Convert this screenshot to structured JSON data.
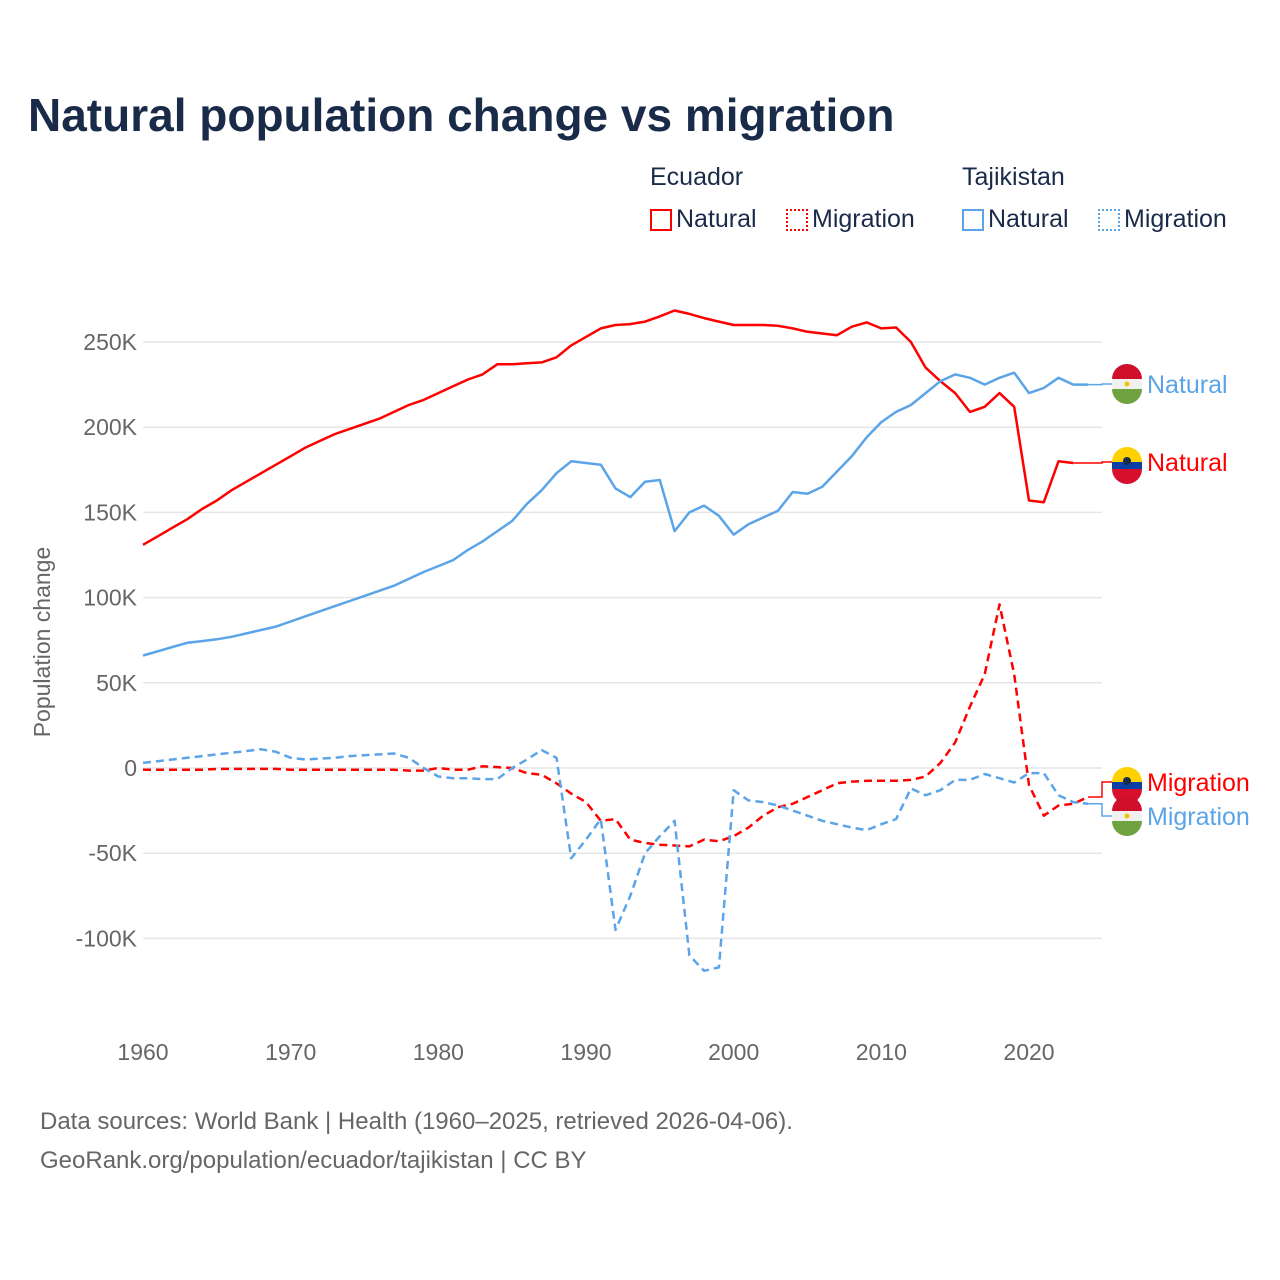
{
  "title": "Natural population change vs migration",
  "legend": {
    "groups": [
      {
        "country": "Ecuador",
        "items": [
          "Natural",
          "Migration"
        ],
        "color": "#ff0000"
      },
      {
        "country": "Tajikistan",
        "items": [
          "Natural",
          "Migration"
        ],
        "color": "#5ba4e8"
      }
    ]
  },
  "footer": {
    "line1": "Data sources: World Bank | Health (1960–2025, retrieved 2026-04-06).",
    "line2": "GeoRank.org/population/ecuador/tajikistan | CC BY"
  },
  "chart_data": {
    "type": "line",
    "title": "Natural population change vs migration",
    "xlabel": "",
    "ylabel": "Population change",
    "xlim": [
      1960,
      2025
    ],
    "ylim": [
      -135000,
      290000
    ],
    "x_ticks": [
      "1960",
      "1970",
      "1980",
      "1990",
      "2000",
      "2010",
      "2020"
    ],
    "y_ticks": [
      {
        "value": 250000,
        "label": "250K"
      },
      {
        "value": 200000,
        "label": "200K"
      },
      {
        "value": 150000,
        "label": "150K"
      },
      {
        "value": 100000,
        "label": "100K"
      },
      {
        "value": 50000,
        "label": "50K"
      },
      {
        "value": 0,
        "label": "0"
      },
      {
        "value": -50000,
        "label": "-50K"
      },
      {
        "value": -100000,
        "label": "-100K"
      }
    ],
    "grid": true,
    "x_start": 1960,
    "unit": "thousands",
    "series": [
      {
        "name": "Ecuador Natural",
        "end_label": "Natural",
        "color": "#ff0000",
        "dash": false,
        "flag": "ecuador",
        "values": [
          131,
          136,
          141,
          146,
          152,
          157,
          163,
          168,
          173,
          178,
          183,
          188,
          192,
          196,
          199,
          202,
          205,
          209,
          213,
          216,
          220,
          224,
          228,
          231,
          237,
          237,
          237.5,
          238,
          241,
          248,
          253,
          258,
          260,
          260.5,
          262,
          265,
          268.5,
          266.5,
          264,
          262,
          260,
          260,
          260,
          259.5,
          258,
          256,
          255,
          254,
          259,
          261.5,
          258,
          258.5,
          250,
          235,
          227,
          220,
          209,
          212,
          220,
          212,
          157,
          156,
          180,
          179
        ]
      },
      {
        "name": "Tajikistan Natural",
        "end_label": "Natural",
        "color": "#5ba4e8",
        "dash": false,
        "flag": "tajikistan",
        "values": [
          66,
          68.5,
          71,
          73.5,
          74.5,
          75.5,
          77,
          79,
          81,
          83,
          86,
          89,
          92,
          95,
          98,
          101,
          104,
          107,
          111,
          115,
          118.5,
          122,
          128,
          133,
          139,
          145,
          155,
          163,
          173,
          180,
          179,
          178,
          164,
          159,
          168,
          169,
          139,
          150,
          154,
          148,
          137,
          143,
          147,
          151,
          162,
          161,
          165,
          174,
          183,
          194,
          203,
          209,
          213,
          220,
          227,
          231,
          229,
          225,
          229,
          232,
          220,
          223,
          229,
          225,
          225
        ]
      },
      {
        "name": "Ecuador Migration",
        "end_label": "Migration",
        "color": "#ff0000",
        "dash": true,
        "flag": "ecuador",
        "values": [
          -1,
          -1,
          -1,
          -1,
          -1,
          -0.5,
          -0.5,
          -0.5,
          -0.5,
          -0.5,
          -1,
          -1,
          -1,
          -1,
          -1,
          -1,
          -1,
          -1,
          -1.5,
          -1.5,
          0,
          -1,
          -1,
          1,
          0.5,
          0,
          -3,
          -4,
          -9,
          -15,
          -20,
          -31,
          -30,
          -42,
          -44,
          -45,
          -45.5,
          -46,
          -42,
          -43,
          -40,
          -35,
          -28,
          -23,
          -21,
          -17,
          -13,
          -9,
          -8,
          -7.5,
          -7.5,
          -7.5,
          -7,
          -5,
          3,
          15,
          36,
          55,
          96,
          55,
          -10,
          -28,
          -22,
          -21,
          -17
        ]
      },
      {
        "name": "Tajikistan Migration",
        "end_label": "Migration",
        "color": "#5ba4e8",
        "dash": true,
        "flag": "tajikistan",
        "values": [
          3,
          4,
          5,
          6,
          7,
          8,
          9,
          10,
          11,
          9.5,
          6,
          5,
          5.5,
          6,
          7,
          7.5,
          8,
          8.5,
          6,
          0,
          -5,
          -6,
          -6,
          -6.5,
          -6.5,
          0,
          5,
          10.5,
          6,
          -53,
          -42,
          -30,
          -95,
          -75,
          -50,
          -40,
          -31,
          -110,
          -119,
          -117,
          -13,
          -19,
          -20,
          -22,
          -25,
          -28,
          -31,
          -33,
          -35,
          -36.5,
          -33,
          -30,
          -12,
          -16,
          -13,
          -7,
          -7,
          -3.5,
          -6,
          -8.5,
          -3,
          -3,
          -16,
          -20,
          -21
        ]
      }
    ]
  }
}
